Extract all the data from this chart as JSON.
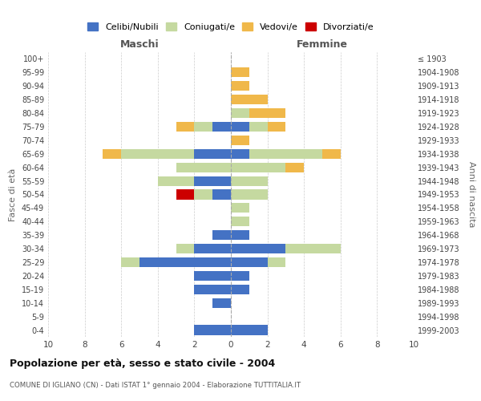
{
  "age_groups": [
    "0-4",
    "5-9",
    "10-14",
    "15-19",
    "20-24",
    "25-29",
    "30-34",
    "35-39",
    "40-44",
    "45-49",
    "50-54",
    "55-59",
    "60-64",
    "65-69",
    "70-74",
    "75-79",
    "80-84",
    "85-89",
    "90-94",
    "95-99",
    "100+"
  ],
  "birth_years": [
    "1999-2003",
    "1994-1998",
    "1989-1993",
    "1984-1988",
    "1979-1983",
    "1974-1978",
    "1969-1973",
    "1964-1968",
    "1959-1963",
    "1954-1958",
    "1949-1953",
    "1944-1948",
    "1939-1943",
    "1934-1938",
    "1929-1933",
    "1924-1928",
    "1919-1923",
    "1914-1918",
    "1909-1913",
    "1904-1908",
    "≤ 1903"
  ],
  "maschi": {
    "celibi": [
      2,
      0,
      1,
      2,
      2,
      5,
      2,
      1,
      0,
      0,
      1,
      2,
      0,
      2,
      0,
      1,
      0,
      0,
      0,
      0,
      0
    ],
    "coniugati": [
      0,
      0,
      0,
      0,
      0,
      1,
      1,
      0,
      0,
      0,
      1,
      2,
      3,
      4,
      0,
      1,
      0,
      0,
      0,
      0,
      0
    ],
    "vedovi": [
      0,
      0,
      0,
      0,
      0,
      0,
      0,
      0,
      0,
      0,
      0,
      0,
      0,
      1,
      0,
      1,
      0,
      0,
      0,
      0,
      0
    ],
    "divorziati": [
      0,
      0,
      0,
      0,
      0,
      0,
      0,
      0,
      0,
      0,
      1,
      0,
      0,
      0,
      0,
      0,
      0,
      0,
      0,
      0,
      0
    ]
  },
  "femmine": {
    "nubili": [
      2,
      0,
      0,
      1,
      1,
      2,
      3,
      1,
      0,
      0,
      0,
      0,
      0,
      1,
      0,
      1,
      0,
      0,
      0,
      0,
      0
    ],
    "coniugate": [
      0,
      0,
      0,
      0,
      0,
      1,
      3,
      0,
      1,
      1,
      2,
      2,
      3,
      4,
      0,
      1,
      1,
      0,
      0,
      0,
      0
    ],
    "vedove": [
      0,
      0,
      0,
      0,
      0,
      0,
      0,
      0,
      0,
      0,
      0,
      0,
      1,
      1,
      1,
      1,
      2,
      2,
      1,
      1,
      0
    ],
    "divorziate": [
      0,
      0,
      0,
      0,
      0,
      0,
      0,
      0,
      0,
      0,
      0,
      0,
      0,
      0,
      0,
      0,
      0,
      0,
      0,
      0,
      0
    ]
  },
  "color_celibi": "#4472c4",
  "color_coniugati": "#c5d9a0",
  "color_vedovi": "#f0b84a",
  "color_divorziati": "#cc0000",
  "xlim": 10,
  "title": "Popolazione per età, sesso e stato civile - 2004",
  "subtitle": "COMUNE DI IGLIANO (CN) - Dati ISTAT 1° gennaio 2004 - Elaborazione TUTTITALIA.IT",
  "xlabel_left": "Maschi",
  "xlabel_right": "Femmine",
  "ylabel_left": "Fasce di età",
  "ylabel_right": "Anni di nascita",
  "legend_labels": [
    "Celibi/Nubili",
    "Coniugati/e",
    "Vedovi/e",
    "Divorziati/e"
  ]
}
